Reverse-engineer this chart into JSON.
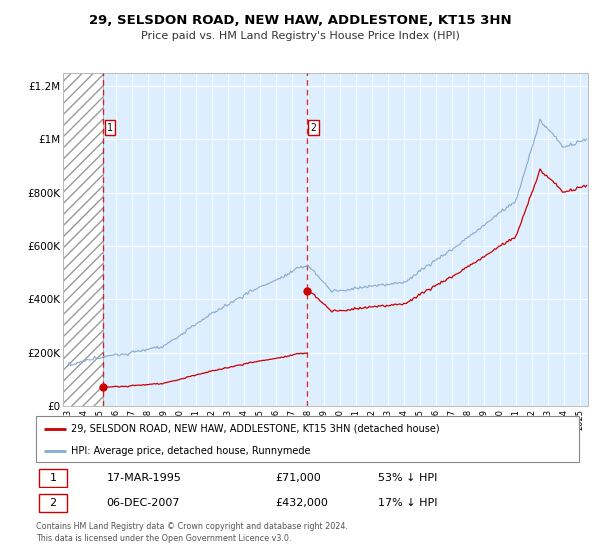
{
  "title": "29, SELSDON ROAD, NEW HAW, ADDLESTONE, KT15 3HN",
  "subtitle": "Price paid vs. HM Land Registry's House Price Index (HPI)",
  "sale1_date_num": 1995.21,
  "sale1_price": 71000,
  "sale1_label": "1",
  "sale1_date_str": "17-MAR-1995",
  "sale1_pct": "53% ↓ HPI",
  "sale2_date_num": 2007.92,
  "sale2_price": 432000,
  "sale2_label": "2",
  "sale2_date_str": "06-DEC-2007",
  "sale2_pct": "17% ↓ HPI",
  "legend_line1": "29, SELSDON ROAD, NEW HAW, ADDLESTONE, KT15 3HN (detached house)",
  "legend_line2": "HPI: Average price, detached house, Runnymede",
  "footer": "Contains HM Land Registry data © Crown copyright and database right 2024.\nThis data is licensed under the Open Government Licence v3.0.",
  "price_line_color": "#cc0000",
  "hpi_line_color": "#88aacc",
  "background_color": "#ddeeff",
  "ylim": [
    0,
    1250000
  ],
  "xlim": [
    1992.7,
    2025.5
  ],
  "yticks": [
    0,
    200000,
    400000,
    600000,
    800000,
    1000000,
    1200000
  ]
}
